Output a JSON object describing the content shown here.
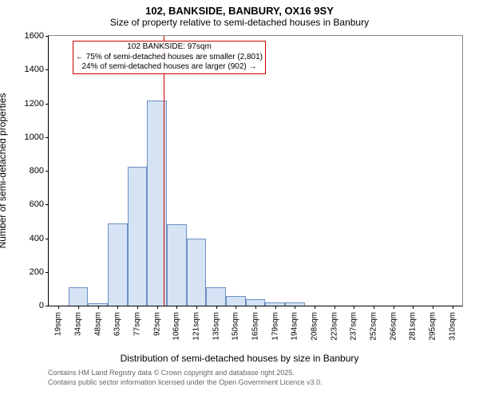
{
  "title": "102, BANKSIDE, BANBURY, OX16 9SY",
  "subtitle": "Size of property relative to semi-detached houses in Banbury",
  "ylabel": "Number of semi-detached properties",
  "xlabel": "Distribution of semi-detached houses by size in Banbury",
  "chart": {
    "type": "bar",
    "categories": [
      "19sqm",
      "34sqm",
      "48sqm",
      "63sqm",
      "77sqm",
      "92sqm",
      "106sqm",
      "121sqm",
      "135sqm",
      "150sqm",
      "165sqm",
      "179sqm",
      "194sqm",
      "208sqm",
      "223sqm",
      "237sqm",
      "252sqm",
      "266sqm",
      "281sqm",
      "295sqm",
      "310sqm"
    ],
    "values": [
      0,
      110,
      15,
      490,
      825,
      1215,
      485,
      400,
      110,
      55,
      40,
      20,
      18,
      0,
      0,
      0,
      0,
      0,
      0,
      0,
      0
    ],
    "bar_fill": "#d5e3f5",
    "bar_stroke": "#6b8fc2",
    "background_color": "#ffffff",
    "ylim": [
      0,
      1600
    ],
    "yticks": [
      0,
      200,
      400,
      600,
      800,
      1000,
      1200,
      1400,
      1600
    ],
    "ref_line": {
      "x_index": 5.35,
      "color": "#cc0000"
    },
    "annotation": {
      "line1": "102 BANKSIDE: 97sqm",
      "line2": "← 75% of semi-detached houses are smaller (2,801)",
      "line3": "24% of semi-detached houses are larger (902) →",
      "border_color": "#cc0000"
    },
    "title_fontsize": 13,
    "subtitle_fontsize": 12,
    "label_fontsize": 12,
    "tick_fontsize": 10
  },
  "footer": {
    "line1": "Contains HM Land Registry data © Crown copyright and database right 2025.",
    "line2": "Contains public sector information licensed under the Open Government Licence v3.0."
  }
}
